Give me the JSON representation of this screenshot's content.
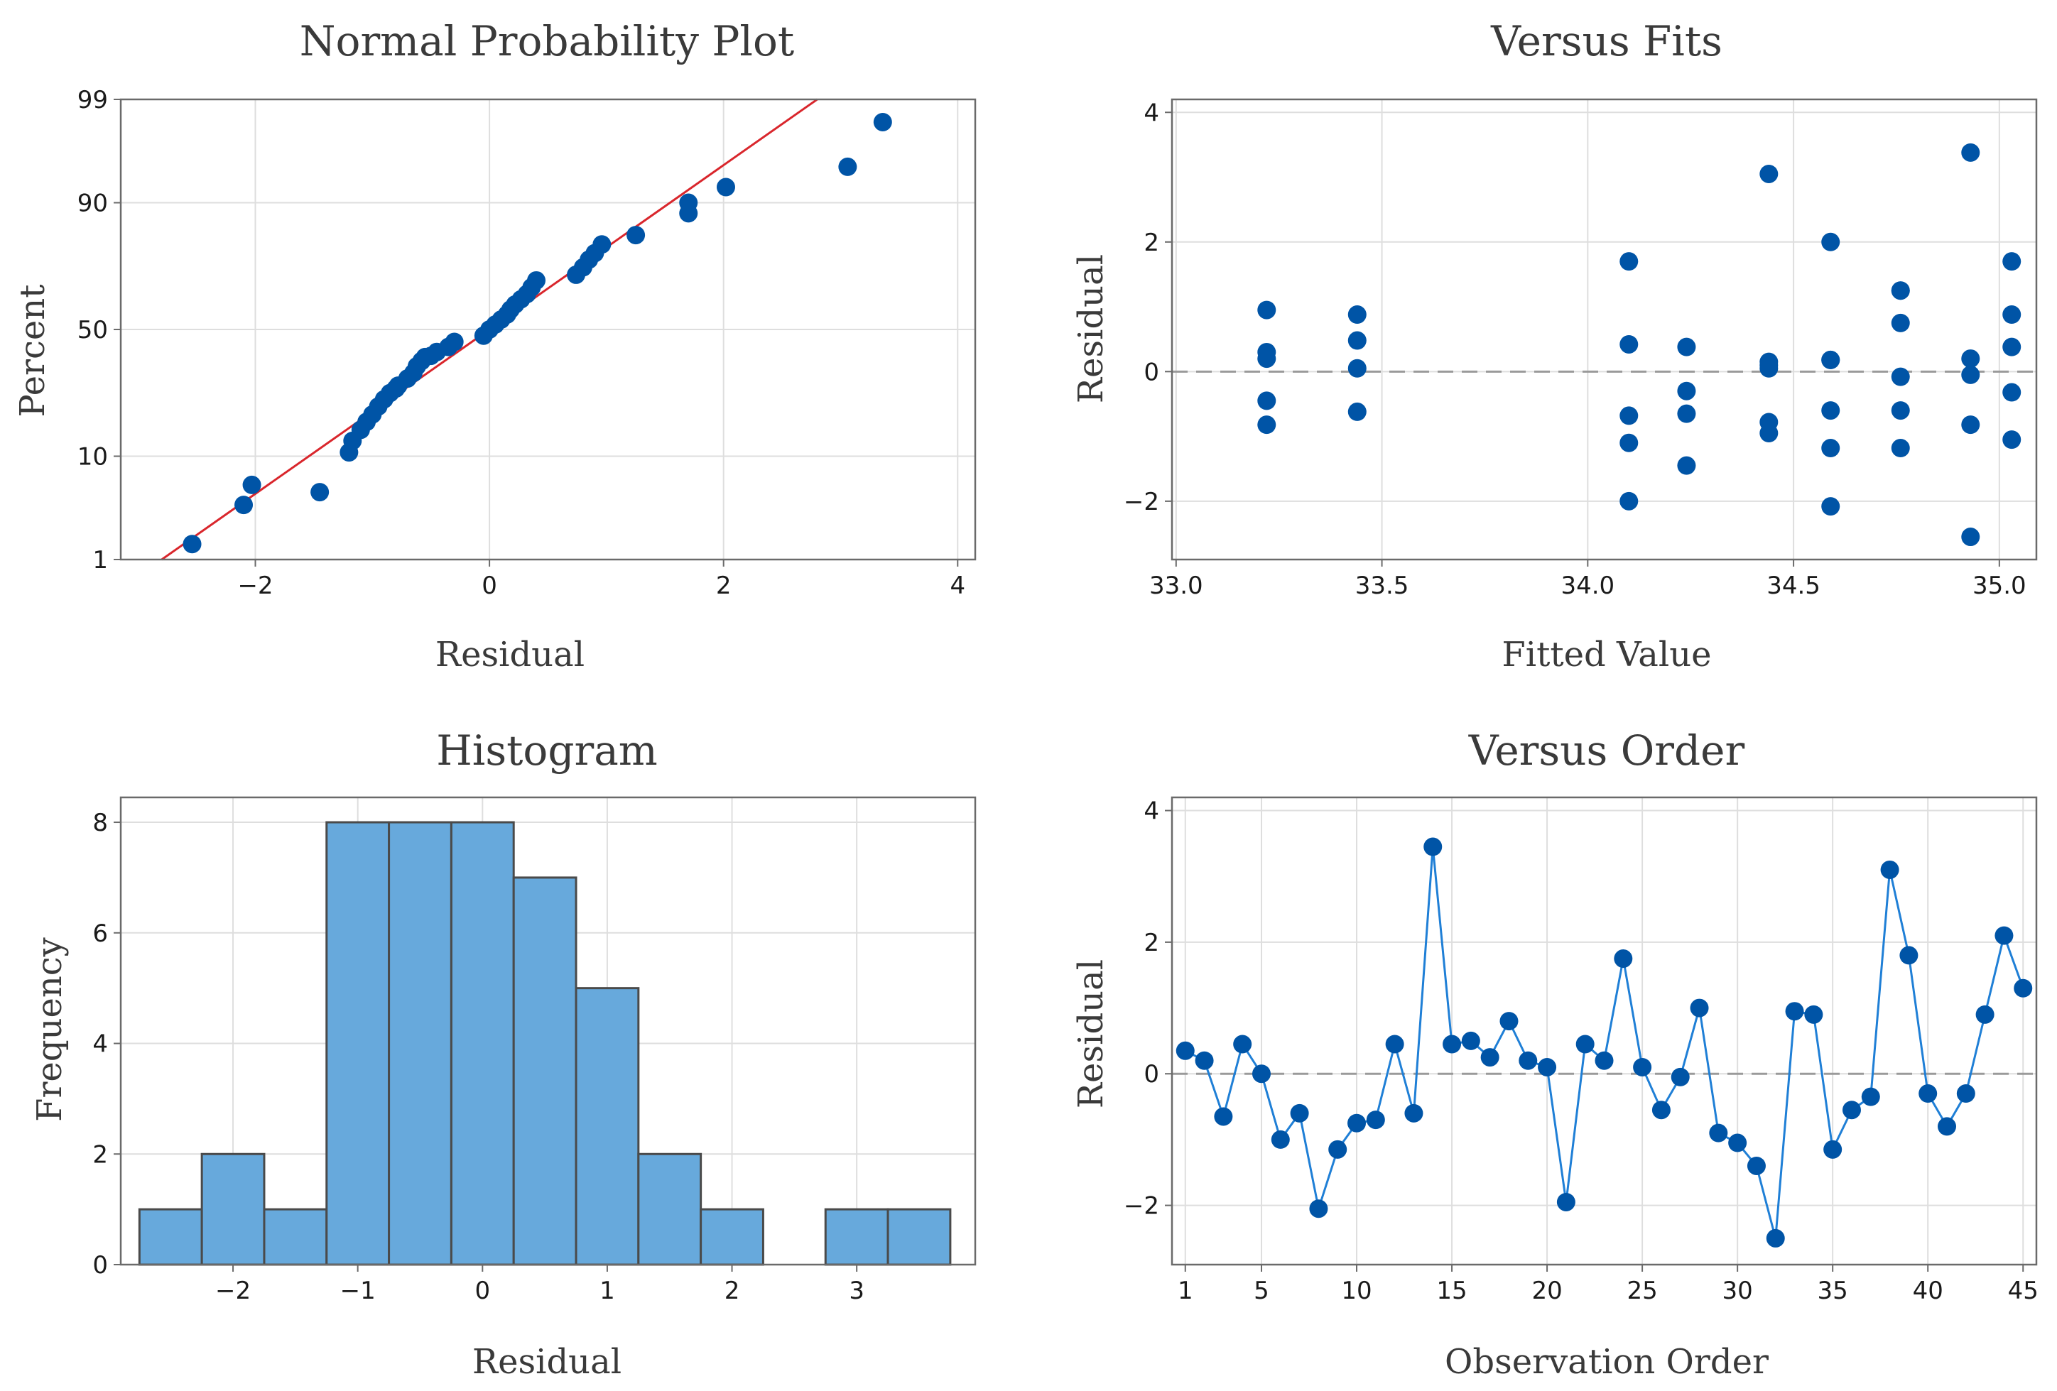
{
  "colors": {
    "point": "#0054a6",
    "line": "#1f7fd6",
    "fit_line": "#d9262c",
    "bar_fill": "#67a9dc",
    "bar_stroke": "#4a4a4a",
    "grid": "#dedede",
    "frame": "#6a6a6a",
    "refline": "#9a9a9a"
  },
  "chart_data": [
    {
      "id": "npp",
      "type": "scatter",
      "title": "Normal Probability Plot",
      "xlabel": "Residual",
      "ylabel": "Percent",
      "xlim": [
        -3.15,
        4.15
      ],
      "ylim": [
        1,
        99
      ],
      "y_scale": "normal-probability",
      "xticks": [
        -2,
        0,
        2,
        4
      ],
      "xtick_labels": [
        "−2",
        "0",
        "2",
        "4"
      ],
      "yticks": [
        1,
        10,
        50,
        90,
        99
      ],
      "ytick_labels": [
        "1",
        "10",
        "50",
        "90",
        "99"
      ],
      "fit_line": {
        "x": [
          -2.8,
          2.8
        ],
        "y": [
          1.0,
          99.0
        ]
      },
      "x": [
        -2.54,
        -2.1,
        -2.03,
        -1.45,
        -1.2,
        -1.17,
        -1.1,
        -1.05,
        -1.0,
        -0.95,
        -0.9,
        -0.85,
        -0.8,
        -0.78,
        -0.7,
        -0.65,
        -0.62,
        -0.58,
        -0.55,
        -0.5,
        -0.45,
        -0.35,
        -0.3,
        -0.05,
        0.0,
        0.05,
        0.1,
        0.15,
        0.18,
        0.22,
        0.27,
        0.32,
        0.36,
        0.4,
        0.74,
        0.8,
        0.85,
        0.9,
        0.96,
        1.25,
        1.7,
        1.7,
        2.02,
        3.06,
        3.36
      ],
      "y": [
        1.5,
        3.8,
        5.8,
        5.0,
        10.7,
        13.0,
        15.5,
        17.5,
        19.5,
        21.8,
        24.0,
        26.0,
        27.5,
        28.5,
        31.0,
        33.0,
        35.5,
        37.5,
        39.0,
        39.5,
        41.0,
        43.0,
        45.0,
        47.5,
        50.0,
        52.0,
        54.0,
        56.0,
        58.0,
        60.0,
        62.0,
        64.0,
        66.5,
        69.0,
        71.0,
        73.5,
        76.0,
        78.0,
        80.5,
        83.0,
        88.0,
        90.0,
        92.5,
        95.0,
        98.2
      ]
    },
    {
      "id": "vfits",
      "type": "scatter",
      "title": "Versus Fits",
      "xlabel": "Fitted Value",
      "ylabel": "Residual",
      "xlim": [
        32.99,
        35.09
      ],
      "ylim": [
        -2.9,
        4.2
      ],
      "xticks": [
        33.0,
        33.5,
        34.0,
        34.5,
        35.0
      ],
      "xtick_labels": [
        "33.0",
        "33.5",
        "34.0",
        "34.5",
        "35.0"
      ],
      "yticks": [
        -2,
        0,
        2,
        4
      ],
      "ytick_labels": [
        "−2",
        "0",
        "2",
        "4"
      ],
      "refline_y": 0,
      "x": [
        33.22,
        33.22,
        33.22,
        33.22,
        33.22,
        33.44,
        33.44,
        33.44,
        33.44,
        34.1,
        34.1,
        34.1,
        34.1,
        34.1,
        34.24,
        34.24,
        34.24,
        34.24,
        34.44,
        34.44,
        34.44,
        34.44,
        34.44,
        34.44,
        34.59,
        34.59,
        34.59,
        34.59,
        34.59,
        34.59,
        34.76,
        34.76,
        34.76,
        34.76,
        34.76,
        34.76,
        34.93,
        34.93,
        34.93,
        34.93,
        34.93,
        35.03,
        35.03,
        35.03,
        35.03,
        35.03
      ],
      "y": [
        0.95,
        0.3,
        0.2,
        -0.45,
        -0.82,
        0.88,
        0.48,
        0.05,
        -0.62,
        1.7,
        0.42,
        -0.68,
        -1.1,
        -2.0,
        0.38,
        -0.3,
        -0.65,
        -1.45,
        3.05,
        0.15,
        0.05,
        -0.78,
        -0.95,
        0.1,
        2.0,
        0.18,
        -0.6,
        -1.18,
        -2.08,
        0.18,
        1.25,
        0.75,
        -0.08,
        -0.6,
        -1.18,
        1.25,
        3.38,
        0.2,
        -0.05,
        -0.82,
        -2.55,
        1.7,
        0.88,
        0.38,
        -0.32,
        -1.05
      ]
    },
    {
      "id": "hist",
      "type": "bar",
      "title": "Histogram",
      "xlabel": "Residual",
      "ylabel": "Frequency",
      "xlim": [
        -2.9,
        3.95
      ],
      "ylim": [
        0,
        8.45
      ],
      "bin_width": 0.5,
      "bin_starts": [
        -2.75,
        -2.25,
        -1.75,
        -1.25,
        -0.75,
        -0.25,
        0.25,
        0.75,
        1.25,
        1.75,
        2.25,
        2.75,
        3.25
      ],
      "values": [
        1,
        2,
        1,
        8,
        8,
        8,
        7,
        5,
        2,
        1,
        0,
        1,
        1
      ],
      "xticks": [
        -2,
        -1,
        0,
        1,
        2,
        3
      ],
      "xtick_labels": [
        "−2",
        "−1",
        "0",
        "1",
        "2",
        "3"
      ],
      "yticks": [
        0,
        2,
        4,
        6,
        8
      ],
      "ytick_labels": [
        "0",
        "2",
        "4",
        "6",
        "8"
      ]
    },
    {
      "id": "vorder",
      "type": "line",
      "title": "Versus Order",
      "xlabel": "Observation Order",
      "ylabel": "Residual",
      "xlim": [
        0.3,
        45.7
      ],
      "ylim": [
        -2.9,
        4.2
      ],
      "xticks": [
        1,
        5,
        10,
        15,
        20,
        25,
        30,
        35,
        40,
        45
      ],
      "xtick_labels": [
        "1",
        "5",
        "10",
        "15",
        "20",
        "25",
        "30",
        "35",
        "40",
        "45"
      ],
      "yticks": [
        -2,
        0,
        2,
        4
      ],
      "ytick_labels": [
        "−2",
        "0",
        "2",
        "4"
      ],
      "refline_y": 0,
      "x": [
        1,
        2,
        3,
        4,
        5,
        6,
        7,
        8,
        9,
        10,
        11,
        12,
        13,
        14,
        15,
        16,
        17,
        18,
        19,
        20,
        21,
        22,
        23,
        24,
        25,
        26,
        27,
        28,
        29,
        30,
        31,
        32,
        33,
        34,
        35,
        36,
        37,
        38,
        39,
        40,
        41,
        42,
        43,
        44,
        45
      ],
      "y": [
        0.35,
        0.2,
        -0.65,
        0.45,
        0.0,
        -1.0,
        -0.6,
        -2.05,
        -1.15,
        -0.75,
        -0.7,
        0.45,
        -0.6,
        3.45,
        0.45,
        0.5,
        0.25,
        0.8,
        0.2,
        0.1,
        -1.95,
        0.45,
        0.2,
        1.75,
        0.1,
        -0.55,
        -0.05,
        1.0,
        -0.9,
        -1.05,
        -1.4,
        -2.5,
        0.95,
        0.9,
        -1.15,
        -0.55,
        -0.35,
        3.1,
        1.8,
        -0.3,
        -0.8,
        -0.3,
        0.9,
        2.1,
        1.3
      ]
    }
  ]
}
